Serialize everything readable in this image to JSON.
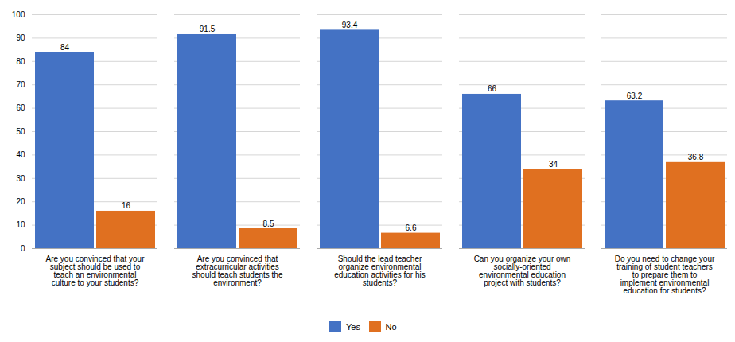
{
  "chart_data": {
    "type": "bar",
    "categories": [
      "Are you convinced that your\nsubject should be used to\nteach an environmental\nculture to your students?",
      "Are you convinced that\nextracurricular activities\nshould teach students the\nenvironment?",
      "Should the lead teacher\norganize environmental\neducation activities for his\nstudents?",
      "Can you organize your own\nsocially-oriented\nenvironmental education\nproject with students?",
      "Do you need to change your\ntraining of student teachers\nto prepare them to\nimplement environmental\neducation for students?"
    ],
    "series": [
      {
        "name": "Yes",
        "color": "#4472C4",
        "values": [
          84,
          91.5,
          93.4,
          66,
          63.2
        ]
      },
      {
        "name": "No",
        "color": "#E07020",
        "values": [
          16,
          8.5,
          6.6,
          34,
          36.8
        ]
      }
    ],
    "ylim": [
      0,
      100
    ],
    "yticks": [
      0,
      10,
      20,
      30,
      40,
      50,
      60,
      70,
      80,
      90,
      100
    ],
    "grid": true,
    "data_labels": true,
    "legend": "bottom"
  }
}
